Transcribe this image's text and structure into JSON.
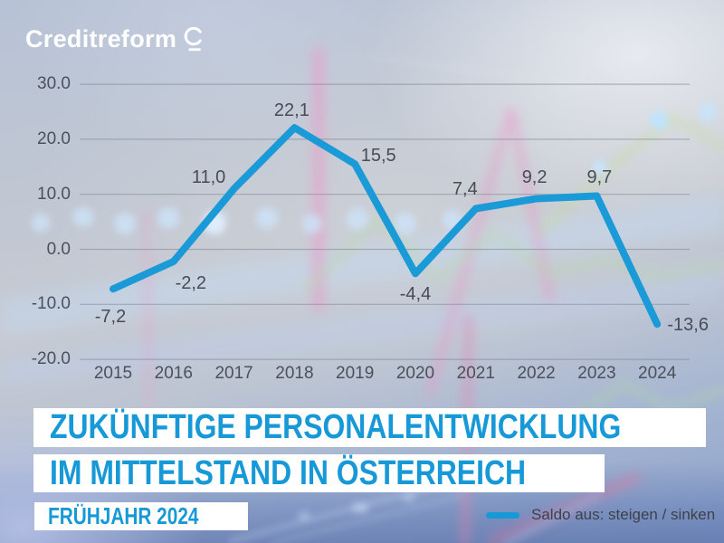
{
  "logo": {
    "text": "Creditreform"
  },
  "title": {
    "line1": "ZUKÜNFTIGE PERSONALENTWICKLUNG",
    "line2": "IM MITTELSTAND IN ÖSTERREICH",
    "subtitle": "FRÜHJAHR 2024"
  },
  "legend": {
    "label": "Saldo aus: steigen / sinken"
  },
  "colors": {
    "accent": "#1899d7",
    "line": "#1b9ad8",
    "axis_label": "#4b515c",
    "value_label": "#474c56",
    "grid": "#7d8794",
    "legend_text": "#3c414b",
    "title_text": "#1899d7",
    "box_bg": "#ffffff"
  },
  "chart_data": {
    "type": "line",
    "categories": [
      "2015",
      "2016",
      "2017",
      "2018",
      "2019",
      "2020",
      "2021",
      "2022",
      "2023",
      "2024"
    ],
    "series": [
      {
        "name": "Saldo aus: steigen / sinken",
        "values": [
          -7.2,
          -2.2,
          11.0,
          22.1,
          15.5,
          -4.4,
          7.4,
          9.2,
          9.7,
          -13.6
        ]
      }
    ],
    "value_labels": [
      "-7,2",
      "-2,2",
      "11,0",
      "22,1",
      "15,5",
      "-4,4",
      "7,4",
      "9,2",
      "9,7",
      "-13,6"
    ],
    "y_ticks": [
      {
        "value": 30,
        "label": "30.0"
      },
      {
        "value": 20,
        "label": "20.0"
      },
      {
        "value": 10,
        "label": "10.0"
      },
      {
        "value": 0,
        "label": "0.0"
      },
      {
        "value": -10,
        "label": "-10.0"
      },
      {
        "value": -20,
        "label": "-20.0"
      }
    ],
    "ylim": [
      -20,
      30
    ],
    "grid": true,
    "legend_position": "bottom-right"
  }
}
